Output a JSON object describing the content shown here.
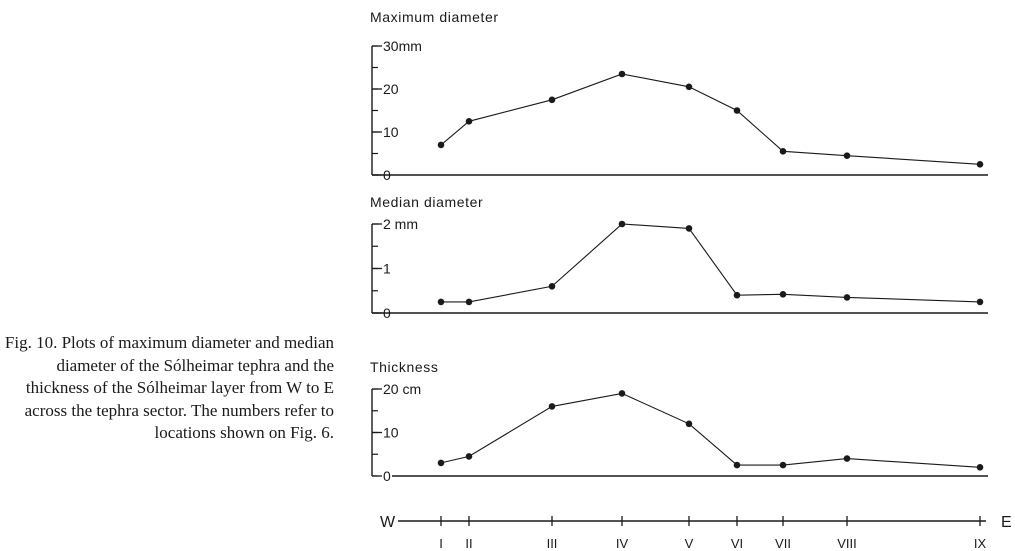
{
  "caption": "Fig. 10.   Plots of maximum diameter and median diameter of the Sólheimar tephra and the thickness of the Sólheimar layer from W to E across the tephra sector. The numbers refer to locations shown on Fig. 6.",
  "chart_data": [
    {
      "type": "line",
      "title": "Maximum diameter",
      "categories": [
        "I",
        "II",
        "III",
        "IV",
        "V",
        "VI",
        "VII",
        "VIII",
        "IX"
      ],
      "values": [
        7,
        12.5,
        17.5,
        23.5,
        20.5,
        15,
        5.5,
        4.5,
        2.5
      ],
      "ylim": [
        0,
        30
      ],
      "major_ticks": [
        0,
        10,
        20,
        30
      ],
      "tick_labels": [
        "0",
        "10",
        "20",
        "30mm"
      ]
    },
    {
      "type": "line",
      "title": "Median diameter",
      "categories": [
        "I",
        "II",
        "III",
        "IV",
        "V",
        "VI",
        "VII",
        "VIII",
        "IX"
      ],
      "values": [
        0.25,
        0.25,
        0.6,
        2.0,
        1.9,
        0.4,
        0.42,
        0.35,
        0.25
      ],
      "ylim": [
        0,
        2
      ],
      "major_ticks": [
        0,
        1,
        2
      ],
      "tick_labels": [
        "0",
        "1",
        "2 mm"
      ]
    },
    {
      "type": "line",
      "title": "Thickness",
      "categories": [
        "I",
        "II",
        "III",
        "IV",
        "V",
        "VI",
        "VII",
        "VIII",
        "IX"
      ],
      "values": [
        3,
        4.5,
        16,
        19,
        12,
        2.5,
        2.5,
        4,
        2
      ],
      "ylim": [
        0,
        20
      ],
      "major_ticks": [
        0,
        10,
        20
      ],
      "tick_labels": [
        "0",
        "10",
        "20 cm"
      ]
    }
  ],
  "transect": {
    "west_label": "W",
    "east_label": "E",
    "locations": [
      "I",
      "II",
      "III",
      "IV",
      "V",
      "VI",
      "VII",
      "VIII",
      "IX"
    ]
  }
}
